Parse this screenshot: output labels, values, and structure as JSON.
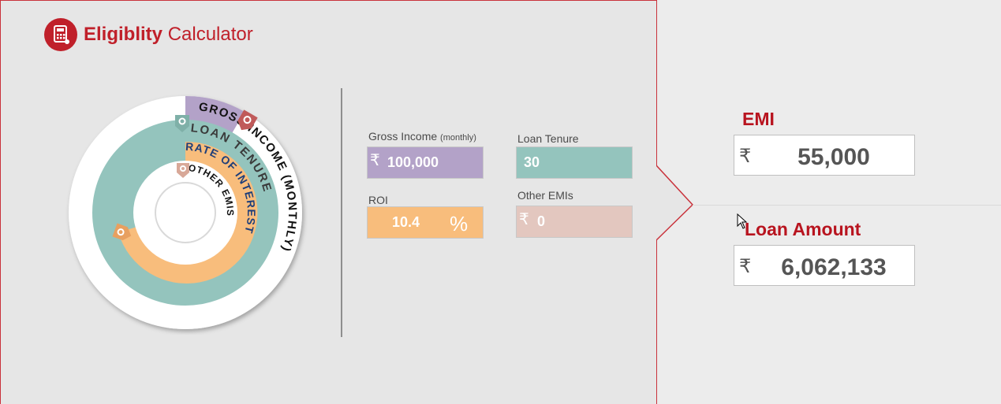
{
  "app": {
    "title_bold": "Eligiblity",
    "title_rest": "Calculator"
  },
  "rings": {
    "outer_label": "GROSS INCOME (MONTHLY)",
    "tenure_label": "LOAN TENURE",
    "roi_label": "RATE OF INTEREST",
    "emis_label": "OTHER EMIS"
  },
  "inputs": {
    "gross_income": {
      "label": "Gross Income",
      "label_suffix": "(monthly)",
      "currency": "₹",
      "value": "100,000"
    },
    "loan_tenure": {
      "label": "Loan Tenure",
      "value": "30"
    },
    "roi": {
      "label": "ROI",
      "value": "10.4",
      "unit": "%"
    },
    "other_emis": {
      "label": "Other EMIs",
      "currency": "₹",
      "value": "0"
    }
  },
  "outputs": {
    "emi": {
      "label": "EMI",
      "currency": "₹",
      "value": "55,000"
    },
    "loan_amount": {
      "label": "Loan Amount",
      "currency": "₹",
      "value": "6,062,133"
    }
  },
  "colors": {
    "brand": "#c0202a",
    "income": "#b3a2c8",
    "tenure": "#94c4bd",
    "roi": "#f8bd7c",
    "emis": "#e3c7bf"
  }
}
